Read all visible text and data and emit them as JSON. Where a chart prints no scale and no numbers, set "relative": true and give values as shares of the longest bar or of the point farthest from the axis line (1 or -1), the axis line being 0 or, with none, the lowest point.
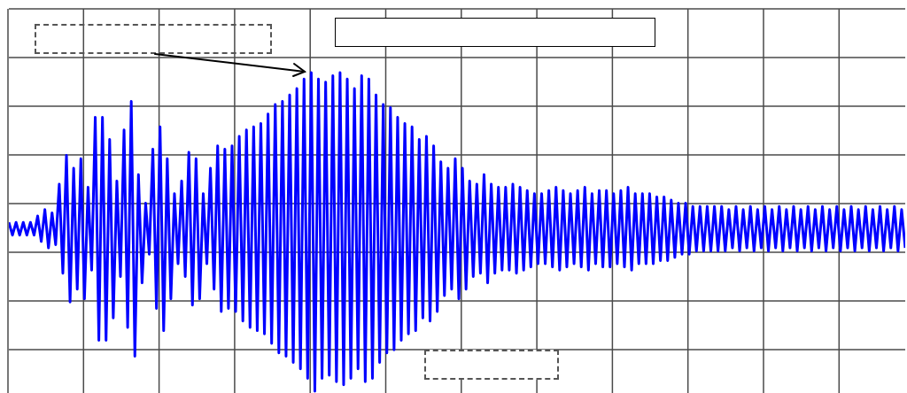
{
  "chart_data": {
    "type": "line",
    "relative": true,
    "grid": true,
    "tick_labels": false,
    "categories": [
      null,
      null,
      null,
      null,
      null,
      null,
      null,
      null,
      null,
      null,
      null,
      null,
      null,
      null,
      null,
      null,
      null,
      null,
      null,
      null,
      null,
      null,
      null,
      null,
      null,
      null,
      null,
      null,
      null,
      null,
      null,
      null,
      null,
      null,
      null,
      null,
      null,
      null,
      null,
      null,
      null,
      null,
      null,
      null,
      null,
      null,
      null,
      null,
      null,
      null,
      null,
      null,
      null,
      null,
      null,
      null,
      null,
      null,
      null,
      null,
      null,
      null,
      null,
      null,
      null,
      null,
      null,
      null,
      null,
      null,
      null,
      null,
      null,
      null,
      null,
      null,
      null,
      null,
      null,
      null,
      null,
      null,
      null,
      null,
      null,
      null,
      null,
      null,
      null,
      null,
      null,
      null,
      null,
      null,
      null,
      null,
      null,
      null,
      null,
      null,
      null,
      null,
      null,
      null,
      null,
      null,
      null,
      null,
      null,
      null,
      null,
      null,
      null,
      null,
      null,
      null,
      null,
      null,
      null,
      null,
      null,
      null,
      null,
      null,
      null,
      null,
      null,
      null,
      null,
      null,
      null,
      null,
      null,
      null,
      null,
      null,
      null,
      null,
      null,
      null,
      null,
      null,
      null,
      null,
      null,
      null,
      null,
      null,
      null,
      null,
      null,
      null,
      null,
      null,
      null,
      null,
      null,
      null,
      null,
      null,
      null,
      null,
      null,
      null,
      null,
      null,
      null,
      null,
      null,
      null,
      null,
      null,
      null,
      null,
      null,
      null,
      null,
      null,
      null,
      null,
      null,
      null,
      null,
      null,
      null,
      null,
      null,
      null,
      null,
      null,
      null,
      null,
      null,
      null,
      null,
      null,
      null,
      null,
      null,
      null,
      null,
      null,
      null,
      null,
      null,
      null,
      null,
      null,
      null,
      null,
      null,
      null,
      null,
      null,
      null,
      null,
      null,
      null,
      null,
      null,
      null,
      null,
      null,
      null,
      null,
      null,
      null,
      null,
      null,
      null,
      null,
      null,
      null,
      null,
      null,
      null,
      null,
      null,
      null,
      null,
      null,
      null,
      null,
      null,
      null,
      null,
      null,
      null,
      null,
      null
    ],
    "series": [
      {
        "color": "#0000ff",
        "values": [
          0.53,
          0.49,
          0.53,
          0.49,
          0.53,
          0.49,
          0.53,
          0.49,
          0.55,
          0.47,
          0.57,
          0.45,
          0.56,
          0.46,
          0.65,
          0.37,
          0.74,
          0.28,
          0.7,
          0.32,
          0.73,
          0.29,
          0.64,
          0.38,
          0.86,
          0.16,
          0.86,
          0.16,
          0.79,
          0.23,
          0.66,
          0.36,
          0.82,
          0.2,
          0.91,
          0.11,
          0.68,
          0.34,
          0.59,
          0.43,
          0.76,
          0.26,
          0.83,
          0.19,
          0.73,
          0.29,
          0.62,
          0.4,
          0.66,
          0.36,
          0.75,
          0.27,
          0.73,
          0.29,
          0.62,
          0.4,
          0.7,
          0.32,
          0.77,
          0.25,
          0.76,
          0.26,
          0.77,
          0.25,
          0.8,
          0.22,
          0.82,
          0.2,
          0.83,
          0.19,
          0.84,
          0.18,
          0.87,
          0.15,
          0.9,
          0.12,
          0.91,
          0.11,
          0.93,
          0.09,
          0.95,
          0.07,
          0.98,
          0.04,
          1,
          0,
          0.98,
          0.04,
          0.97,
          0.05,
          0.99,
          0.03,
          1,
          0.02,
          0.98,
          0.04,
          0.95,
          0.07,
          0.99,
          0.03,
          0.98,
          0.04,
          0.93,
          0.09,
          0.9,
          0.12,
          0.89,
          0.13,
          0.86,
          0.16,
          0.84,
          0.18,
          0.83,
          0.19,
          0.79,
          0.23,
          0.8,
          0.22,
          0.77,
          0.25,
          0.72,
          0.3,
          0.7,
          0.32,
          0.73,
          0.29,
          0.7,
          0.32,
          0.66,
          0.36,
          0.65,
          0.37,
          0.68,
          0.34,
          0.65,
          0.37,
          0.64,
          0.38,
          0.64,
          0.38,
          0.65,
          0.37,
          0.64,
          0.38,
          0.63,
          0.39,
          0.62,
          0.4,
          0.62,
          0.4,
          0.63,
          0.39,
          0.64,
          0.38,
          0.63,
          0.39,
          0.62,
          0.4,
          0.63,
          0.39,
          0.64,
          0.38,
          0.62,
          0.4,
          0.63,
          0.39,
          0.63,
          0.39,
          0.62,
          0.4,
          0.63,
          0.39,
          0.64,
          0.38,
          0.62,
          0.4,
          0.62,
          0.4,
          0.62,
          0.4,
          0.61,
          0.41,
          0.61,
          0.41,
          0.6,
          0.42,
          0.59,
          0.43,
          0.59,
          0.43,
          0.58,
          0.44,
          0.58,
          0.44,
          0.58,
          0.44,
          0.58,
          0.44,
          0.58,
          0.44,
          0.57,
          0.45,
          0.58,
          0.44,
          0.57,
          0.45,
          0.58,
          0.44,
          0.57,
          0.45,
          0.58,
          0.44,
          0.57,
          0.45,
          0.58,
          0.44,
          0.57,
          0.45,
          0.58,
          0.44,
          0.57,
          0.45,
          0.58,
          0.44,
          0.57,
          0.45,
          0.58,
          0.44,
          0.57,
          0.45,
          0.58,
          0.44,
          0.57,
          0.45,
          0.58,
          0.44,
          0.57,
          0.45,
          0.58,
          0.44,
          0.57,
          0.45,
          0.58,
          0.44,
          0.57,
          0.45,
          0.58,
          0.44,
          0.57,
          0.45
        ]
      }
    ]
  }
}
